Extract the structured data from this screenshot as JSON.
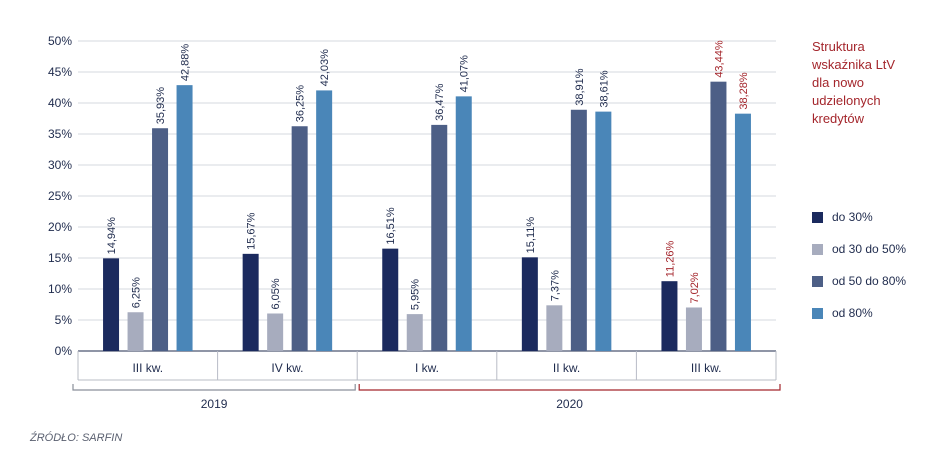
{
  "chart_data": {
    "type": "bar",
    "title": "Struktura\nwskaźnika LtV\ndla nowo\nudzielonych\nkredytów",
    "categories": [
      "III kw.",
      "IV kw.",
      "I kw.",
      "II kw.",
      "III kw."
    ],
    "category_years": [
      "2019",
      "2019",
      "2020",
      "2020",
      "2020"
    ],
    "year_groups": [
      {
        "label": "2019",
        "color": "#8a8f9a"
      },
      {
        "label": "2020",
        "color": "#a4262c"
      }
    ],
    "series": [
      {
        "name": "do 30%",
        "color": "#1b2a5e",
        "values": [
          14.94,
          15.67,
          16.51,
          15.11,
          11.26
        ],
        "labels": [
          "14,94%",
          "15,67%",
          "16,51%",
          "15,11%",
          "11,26%"
        ]
      },
      {
        "name": "od 30 do 50%",
        "color": "#a7acbe",
        "values": [
          6.25,
          6.05,
          5.95,
          7.37,
          7.02
        ],
        "labels": [
          "6,25%",
          "6,05%",
          "5,95%",
          "7,37%",
          "7,02%"
        ]
      },
      {
        "name": "od 50 do 80%",
        "color": "#4d5f86",
        "values": [
          35.93,
          36.25,
          36.47,
          38.91,
          43.44
        ],
        "labels": [
          "35,93%",
          "36,25%",
          "36,47%",
          "38,91%",
          "43,44%"
        ]
      },
      {
        "name": "od 80%",
        "color": "#4a86b8",
        "values": [
          42.88,
          42.03,
          41.07,
          38.61,
          38.28
        ],
        "labels": [
          "42,88%",
          "42,03%",
          "41,07%",
          "38,61%",
          "38,28%"
        ]
      }
    ],
    "highlight_category_index": 4,
    "highlight_label_color": "#a4262c",
    "ylim": [
      0,
      50
    ],
    "yticks": [
      0,
      5,
      10,
      15,
      20,
      25,
      30,
      35,
      40,
      45,
      50
    ],
    "ytick_labels": [
      "0%",
      "5%",
      "10%",
      "15%",
      "20%",
      "25%",
      "30%",
      "35%",
      "40%",
      "45%",
      "50%"
    ],
    "grid": true,
    "legend_position": "right",
    "xlabel": "",
    "ylabel": ""
  },
  "source": "ŹRÓDŁO: SARFIN"
}
